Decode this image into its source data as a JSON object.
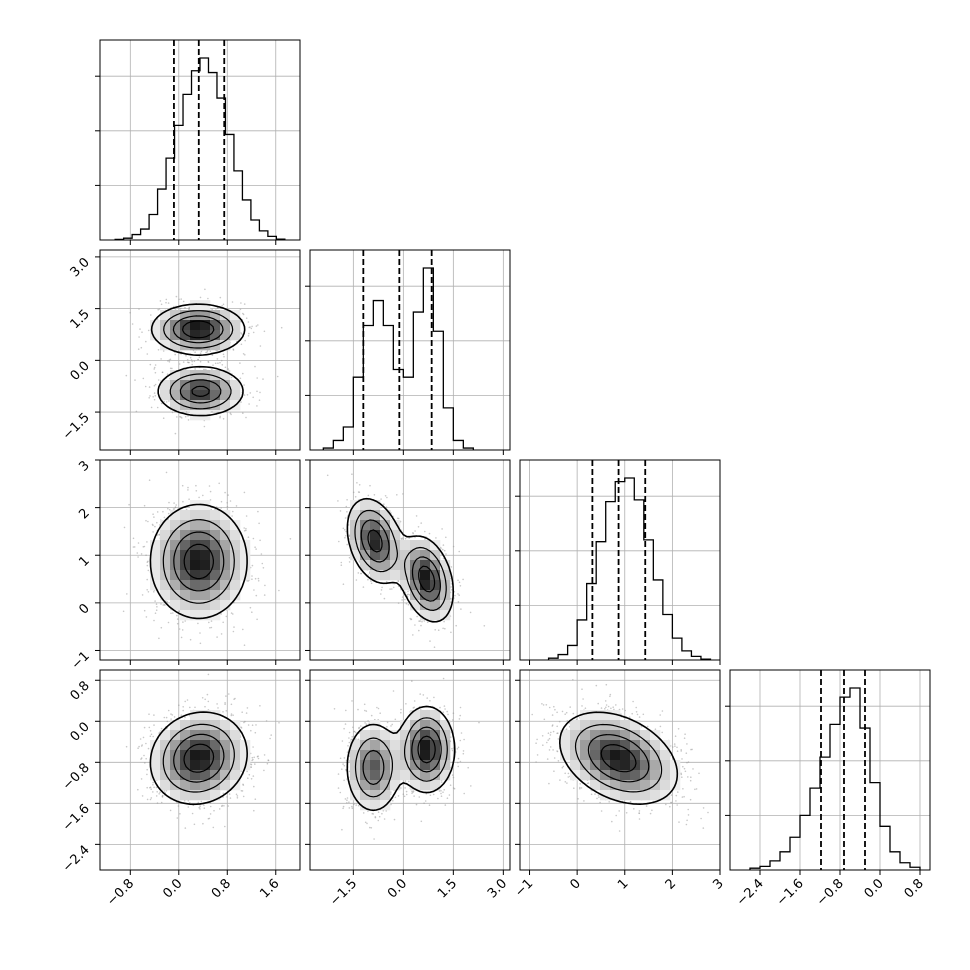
{
  "figure": {
    "type": "corner",
    "parameters": 4,
    "background": "#ffffff",
    "grid": true,
    "grid_color": "#b0b0b0",
    "hist_color": "#000000",
    "scatter_color": "#9a9a9a",
    "density_colormap": [
      "#ffffff",
      "#000000"
    ],
    "quantile_line_style": "dashed"
  },
  "chart_data": [
    {
      "type": "histogram",
      "param": 0,
      "xlim": [
        -1.3,
        2.0
      ],
      "xticks": [
        -0.8,
        0.0,
        0.8,
        1.6
      ],
      "xtick_labels": [
        "−0.8",
        "0.0",
        "0.8",
        "1.6"
      ],
      "quantiles": [
        -0.08,
        0.33,
        0.75
      ],
      "bin_edges": [
        -1.05,
        -0.91,
        -0.77,
        -0.63,
        -0.49,
        -0.35,
        -0.21,
        -0.07,
        0.07,
        0.21,
        0.35,
        0.49,
        0.63,
        0.77,
        0.91,
        1.05,
        1.19,
        1.33,
        1.47,
        1.61,
        1.75
      ],
      "counts": [
        0.003,
        0.01,
        0.03,
        0.06,
        0.14,
        0.28,
        0.45,
        0.63,
        0.8,
        0.93,
        1.0,
        0.92,
        0.78,
        0.58,
        0.38,
        0.22,
        0.11,
        0.05,
        0.02,
        0.005
      ]
    },
    {
      "type": "histogram",
      "param": 1,
      "xlim": [
        -2.8,
        3.2
      ],
      "xticks": [
        -1.5,
        0.0,
        1.5,
        3.0
      ],
      "xtick_labels": [
        "−1.5",
        "0.0",
        "1.5",
        "3.0"
      ],
      "quantiles": [
        -1.2,
        -0.12,
        0.85
      ],
      "bin_edges": [
        -2.4,
        -2.1,
        -1.8,
        -1.5,
        -1.2,
        -0.9,
        -0.6,
        -0.3,
        0.0,
        0.3,
        0.6,
        0.9,
        1.2,
        1.5,
        1.8,
        2.1
      ],
      "counts": [
        0.01,
        0.05,
        0.12,
        0.38,
        0.65,
        0.78,
        0.65,
        0.42,
        0.38,
        0.72,
        0.95,
        0.62,
        0.22,
        0.05,
        0.01
      ]
    },
    {
      "type": "histogram",
      "param": 2,
      "xlim": [
        -1.2,
        3.0
      ],
      "xticks": [
        -1,
        0,
        1,
        2,
        3
      ],
      "xtick_labels": [
        "−1",
        "0",
        "1",
        "2",
        "3"
      ],
      "quantiles": [
        0.32,
        0.87,
        1.43
      ],
      "bin_edges": [
        -0.6,
        -0.4,
        -0.2,
        0.0,
        0.2,
        0.4,
        0.6,
        0.8,
        1.0,
        1.2,
        1.4,
        1.6,
        1.8,
        2.0,
        2.2,
        2.4,
        2.6,
        2.8
      ],
      "counts": [
        0.01,
        0.03,
        0.08,
        0.22,
        0.42,
        0.65,
        0.87,
        0.98,
        1.0,
        0.88,
        0.66,
        0.44,
        0.25,
        0.12,
        0.05,
        0.02,
        0.005
      ]
    },
    {
      "type": "histogram",
      "param": 3,
      "xlim": [
        -3.0,
        1.0
      ],
      "xticks": [
        -2.4,
        -1.6,
        -0.8,
        0.0,
        0.8
      ],
      "xtick_labels": [
        "−2.4",
        "−1.6",
        "−0.8",
        "0.0",
        "0.8"
      ],
      "quantiles": [
        -1.18,
        -0.72,
        -0.3
      ],
      "bin_edges": [
        -2.6,
        -2.4,
        -2.2,
        -2.0,
        -1.8,
        -1.6,
        -1.4,
        -1.2,
        -1.0,
        -0.8,
        -0.6,
        -0.4,
        -0.2,
        0.0,
        0.2,
        0.4,
        0.6,
        0.8
      ],
      "counts": [
        0.01,
        0.02,
        0.05,
        0.1,
        0.18,
        0.3,
        0.45,
        0.62,
        0.8,
        0.95,
        1.0,
        0.78,
        0.48,
        0.24,
        0.1,
        0.04,
        0.015
      ]
    },
    {
      "type": "density2d",
      "row": 1,
      "col": 0,
      "xlim": [
        -1.3,
        2.0
      ],
      "ylim": [
        -2.6,
        3.2
      ],
      "yticks": [
        -1.5,
        0.0,
        1.5,
        3.0
      ],
      "ytick_labels": [
        "−1.5",
        "0.0",
        "1.5",
        "3.0"
      ],
      "components": [
        {
          "mean": [
            0.32,
            0.9
          ],
          "sd": [
            0.38,
            0.36
          ],
          "rho": 0.0,
          "weight": 0.55
        },
        {
          "mean": [
            0.36,
            -0.9
          ],
          "sd": [
            0.36,
            0.36
          ],
          "rho": 0.0,
          "weight": 0.45
        }
      ]
    },
    {
      "type": "density2d",
      "row": 2,
      "col": 0,
      "xlim": [
        -1.3,
        2.0
      ],
      "ylim": [
        -1.2,
        3.0
      ],
      "yticks": [
        -1,
        0,
        1,
        2,
        3
      ],
      "ytick_labels": [
        "−1",
        "0",
        "1",
        "2",
        "3"
      ],
      "components": [
        {
          "mean": [
            0.33,
            0.87
          ],
          "sd": [
            0.4,
            0.6
          ],
          "rho": 0.0,
          "weight": 1.0
        }
      ]
    },
    {
      "type": "density2d",
      "row": 2,
      "col": 1,
      "xlim": [
        -2.8,
        3.2
      ],
      "ylim": [
        -1.2,
        3.0
      ],
      "components": [
        {
          "mean": [
            -0.85,
            1.3
          ],
          "sd": [
            0.42,
            0.45
          ],
          "rho": -0.3,
          "weight": 0.5
        },
        {
          "mean": [
            0.7,
            0.5
          ],
          "sd": [
            0.4,
            0.45
          ],
          "rho": -0.3,
          "weight": 0.5
        }
      ]
    },
    {
      "type": "density2d",
      "row": 3,
      "col": 0,
      "xlim": [
        -1.3,
        2.0
      ],
      "ylim": [
        -2.9,
        1.0
      ],
      "yticks": [
        -2.4,
        -1.6,
        -0.8,
        0.0,
        0.8
      ],
      "ytick_labels": [
        "−2.4",
        "−1.6",
        "−0.8",
        "0.0",
        "0.8"
      ],
      "components": [
        {
          "mean": [
            0.33,
            -0.72
          ],
          "sd": [
            0.4,
            0.45
          ],
          "rho": 0.1,
          "weight": 1.0
        }
      ]
    },
    {
      "type": "density2d",
      "row": 3,
      "col": 1,
      "xlim": [
        -2.8,
        3.2
      ],
      "ylim": [
        -2.9,
        1.0
      ],
      "components": [
        {
          "mean": [
            -0.9,
            -0.9
          ],
          "sd": [
            0.42,
            0.45
          ],
          "rho": 0.0,
          "weight": 0.45
        },
        {
          "mean": [
            0.7,
            -0.55
          ],
          "sd": [
            0.42,
            0.42
          ],
          "rho": 0.0,
          "weight": 0.55
        }
      ]
    },
    {
      "type": "density2d",
      "row": 3,
      "col": 2,
      "xlim": [
        -1.2,
        3.0
      ],
      "ylim": [
        -2.9,
        1.0
      ],
      "components": [
        {
          "mean": [
            0.87,
            -0.72
          ],
          "sd": [
            0.62,
            0.45
          ],
          "rho": -0.35,
          "weight": 1.0
        }
      ]
    }
  ]
}
